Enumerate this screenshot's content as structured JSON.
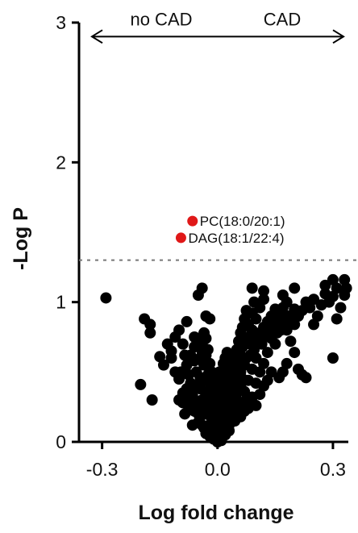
{
  "chart_data": {
    "type": "scatter",
    "xlabel": "Log fold change",
    "ylabel": "-Log P",
    "xlim": [
      -0.36,
      0.34
    ],
    "ylim": [
      0,
      3
    ],
    "xticks": [
      {
        "value": -0.3,
        "label": "-0.3"
      },
      {
        "value": 0.0,
        "label": "0.0"
      },
      {
        "value": 0.3,
        "label": "0.3"
      }
    ],
    "yticks": [
      {
        "value": 0,
        "label": "0"
      },
      {
        "value": 1,
        "label": "1"
      },
      {
        "value": 2,
        "label": "2"
      },
      {
        "value": 3,
        "label": "3"
      }
    ],
    "threshold": 1.3,
    "direction_arrow": {
      "y": 2.9,
      "left_label": "no CAD",
      "right_label": "CAD"
    },
    "colors": {
      "points": "#000000",
      "highlight": "#e01818",
      "threshold": "#777777"
    },
    "highlighted": [
      {
        "label": "PC(18:0/20:1)",
        "x": -0.065,
        "y": 1.58
      },
      {
        "label": "DAG(18:1/22:4)",
        "x": -0.095,
        "y": 1.46
      }
    ],
    "points": [
      [
        -0.29,
        1.03
      ],
      [
        -0.19,
        0.88
      ],
      [
        -0.175,
        0.84
      ],
      [
        -0.175,
        0.78
      ],
      [
        -0.2,
        0.41
      ],
      [
        -0.15,
        0.61
      ],
      [
        -0.14,
        0.55
      ],
      [
        -0.17,
        0.3
      ],
      [
        -0.12,
        0.65
      ],
      [
        -0.11,
        0.5
      ],
      [
        -0.1,
        0.45
      ],
      [
        -0.05,
        1.05
      ],
      [
        -0.04,
        1.1
      ],
      [
        -0.03,
        0.9
      ],
      [
        -0.02,
        0.88
      ],
      [
        -0.1,
        0.3
      ],
      [
        -0.09,
        0.35
      ],
      [
        -0.08,
        0.55
      ],
      [
        -0.07,
        0.62
      ],
      [
        -0.06,
        0.58
      ],
      [
        -0.07,
        0.42
      ],
      [
        -0.05,
        0.4
      ],
      [
        -0.045,
        0.38
      ],
      [
        -0.04,
        0.3
      ],
      [
        -0.035,
        0.55
      ],
      [
        -0.03,
        0.34
      ],
      [
        -0.025,
        0.25
      ],
      [
        -0.02,
        0.2
      ],
      [
        -0.015,
        0.15
      ],
      [
        -0.01,
        0.1
      ],
      [
        -0.005,
        0.06
      ],
      [
        0.0,
        0.03
      ],
      [
        0.005,
        0.08
      ],
      [
        0.01,
        0.12
      ],
      [
        0.012,
        0.18
      ],
      [
        -0.06,
        0.68
      ],
      [
        -0.06,
        0.75
      ],
      [
        -0.05,
        0.72
      ],
      [
        -0.04,
        0.65
      ],
      [
        -0.03,
        0.62
      ],
      [
        -0.025,
        0.48
      ],
      [
        -0.02,
        0.42
      ],
      [
        -0.015,
        0.38
      ],
      [
        -0.01,
        0.3
      ],
      [
        -0.01,
        0.22
      ],
      [
        -0.02,
        0.32
      ],
      [
        -0.03,
        0.2
      ],
      [
        -0.04,
        0.22
      ],
      [
        -0.055,
        0.28
      ],
      [
        -0.065,
        0.33
      ],
      [
        -0.075,
        0.25
      ],
      [
        -0.085,
        0.2
      ],
      [
        -0.09,
        0.28
      ],
      [
        -0.065,
        0.12
      ],
      [
        -0.05,
        0.14
      ],
      [
        -0.035,
        0.1
      ],
      [
        -0.025,
        0.08
      ],
      [
        -0.015,
        0.05
      ],
      [
        -0.02,
        0.12
      ],
      [
        -0.045,
        0.18
      ],
      [
        -0.055,
        0.5
      ],
      [
        -0.045,
        0.46
      ],
      [
        -0.035,
        0.44
      ],
      [
        -0.025,
        0.36
      ],
      [
        -0.03,
        0.28
      ],
      [
        -0.015,
        0.28
      ],
      [
        -0.012,
        0.34
      ],
      [
        -0.008,
        0.18
      ],
      [
        -0.005,
        0.14
      ],
      [
        0.0,
        0.1
      ],
      [
        0.015,
        0.1
      ],
      [
        0.02,
        0.14
      ],
      [
        0.025,
        0.2
      ],
      [
        0.03,
        0.25
      ],
      [
        0.035,
        0.3
      ],
      [
        0.02,
        0.28
      ],
      [
        0.025,
        0.35
      ],
      [
        0.03,
        0.4
      ],
      [
        0.04,
        0.38
      ],
      [
        0.045,
        0.45
      ],
      [
        0.04,
        0.5
      ],
      [
        0.05,
        0.52
      ],
      [
        0.055,
        0.58
      ],
      [
        0.06,
        0.62
      ],
      [
        0.06,
        0.5
      ],
      [
        0.065,
        0.68
      ],
      [
        0.07,
        0.72
      ],
      [
        0.08,
        0.75
      ],
      [
        0.085,
        0.7
      ],
      [
        0.09,
        0.8
      ],
      [
        0.075,
        0.6
      ],
      [
        0.07,
        0.55
      ],
      [
        0.065,
        0.45
      ],
      [
        0.05,
        0.42
      ],
      [
        0.045,
        0.34
      ],
      [
        0.035,
        0.18
      ],
      [
        0.03,
        0.12
      ],
      [
        0.04,
        0.22
      ],
      [
        0.05,
        0.3
      ],
      [
        0.055,
        0.36
      ],
      [
        0.06,
        0.4
      ],
      [
        0.07,
        0.36
      ],
      [
        0.08,
        0.44
      ],
      [
        0.09,
        0.52
      ],
      [
        0.1,
        0.6
      ],
      [
        0.1,
        0.7
      ],
      [
        0.11,
        0.78
      ],
      [
        0.12,
        0.82
      ],
      [
        0.13,
        0.86
      ],
      [
        0.14,
        0.9
      ],
      [
        0.1,
        0.88
      ],
      [
        0.09,
        0.92
      ],
      [
        0.095,
        1.0
      ],
      [
        0.11,
        0.96
      ],
      [
        0.12,
        1.02
      ],
      [
        0.09,
        1.1
      ],
      [
        0.12,
        1.08
      ],
      [
        0.15,
        0.95
      ],
      [
        0.16,
        0.92
      ],
      [
        0.17,
        0.96
      ],
      [
        0.18,
        1.0
      ],
      [
        0.17,
        1.05
      ],
      [
        0.16,
        0.85
      ],
      [
        0.18,
        0.8
      ],
      [
        0.2,
        0.84
      ],
      [
        0.21,
        0.9
      ],
      [
        0.22,
        0.94
      ],
      [
        0.19,
        0.72
      ],
      [
        0.15,
        0.7
      ],
      [
        0.13,
        0.64
      ],
      [
        0.12,
        0.56
      ],
      [
        0.11,
        0.5
      ],
      [
        0.1,
        0.42
      ],
      [
        0.08,
        0.3
      ],
      [
        0.07,
        0.22
      ],
      [
        0.06,
        0.18
      ],
      [
        0.045,
        0.15
      ],
      [
        0.03,
        0.08
      ],
      [
        0.02,
        0.05
      ],
      [
        0.01,
        0.03
      ],
      [
        0.0,
        0.18
      ],
      [
        0.005,
        0.24
      ],
      [
        0.01,
        0.28
      ],
      [
        0.008,
        0.34
      ],
      [
        0.015,
        0.4
      ],
      [
        -0.008,
        0.4
      ],
      [
        0.0,
        0.45
      ],
      [
        0.005,
        0.4
      ],
      [
        0.02,
        0.46
      ],
      [
        0.025,
        0.52
      ],
      [
        0.035,
        0.56
      ],
      [
        0.04,
        0.62
      ],
      [
        0.05,
        0.66
      ],
      [
        0.055,
        0.72
      ],
      [
        0.06,
        0.78
      ],
      [
        0.065,
        0.82
      ],
      [
        0.07,
        0.88
      ],
      [
        0.075,
        0.94
      ],
      [
        0.08,
        0.84
      ],
      [
        0.085,
        0.62
      ],
      [
        0.095,
        0.66
      ],
      [
        0.105,
        0.74
      ],
      [
        0.115,
        0.7
      ],
      [
        0.125,
        0.76
      ],
      [
        0.135,
        0.8
      ],
      [
        0.14,
        0.74
      ],
      [
        0.145,
        0.84
      ],
      [
        0.155,
        0.78
      ],
      [
        0.165,
        0.8
      ],
      [
        0.175,
        0.86
      ],
      [
        0.185,
        0.9
      ],
      [
        0.2,
        0.95
      ],
      [
        0.23,
        1.0
      ],
      [
        0.25,
        1.02
      ],
      [
        0.24,
        0.96
      ],
      [
        0.27,
        0.98
      ],
      [
        0.28,
        1.06
      ],
      [
        0.29,
        1.0
      ],
      [
        0.3,
        1.04
      ],
      [
        0.31,
        1.1
      ],
      [
        0.32,
        0.96
      ],
      [
        0.33,
        1.05
      ],
      [
        0.31,
        0.88
      ],
      [
        0.26,
        0.9
      ],
      [
        0.25,
        0.84
      ],
      [
        0.2,
        0.64
      ],
      [
        0.18,
        0.56
      ],
      [
        0.21,
        0.52
      ],
      [
        0.22,
        0.48
      ],
      [
        0.23,
        0.46
      ],
      [
        0.3,
        0.6
      ],
      [
        0.28,
        1.12
      ],
      [
        0.3,
        1.16
      ],
      [
        0.33,
        1.16
      ],
      [
        0.335,
        1.1
      ],
      [
        0.17,
        0.5
      ],
      [
        0.16,
        0.46
      ],
      [
        0.14,
        0.5
      ],
      [
        0.13,
        0.44
      ],
      [
        0.12,
        0.4
      ],
      [
        0.11,
        0.34
      ],
      [
        0.09,
        0.32
      ],
      [
        0.08,
        0.24
      ],
      [
        0.1,
        0.26
      ],
      [
        0.2,
        1.1
      ],
      [
        -0.13,
        0.7
      ],
      [
        -0.11,
        0.75
      ],
      [
        -0.1,
        0.8
      ],
      [
        -0.09,
        0.7
      ],
      [
        -0.08,
        0.86
      ],
      [
        -0.12,
        0.6
      ],
      [
        -0.085,
        0.62
      ],
      [
        -0.095,
        0.5
      ],
      [
        -0.075,
        0.48
      ],
      [
        -0.06,
        0.4
      ],
      [
        -0.08,
        0.38
      ],
      [
        -0.07,
        0.3
      ],
      [
        -0.06,
        0.22
      ],
      [
        -0.05,
        0.2
      ],
      [
        -0.04,
        0.12
      ],
      [
        -0.03,
        0.06
      ],
      [
        -0.02,
        0.04
      ],
      [
        -0.01,
        0.02
      ],
      [
        0.0,
        0.0
      ],
      [
        0.01,
        0.01
      ],
      [
        0.02,
        0.08
      ],
      [
        0.015,
        0.22
      ],
      [
        0.025,
        0.3
      ],
      [
        0.03,
        0.34
      ],
      [
        0.035,
        0.42
      ],
      [
        0.04,
        0.3
      ],
      [
        0.05,
        0.24
      ],
      [
        0.055,
        0.2
      ],
      [
        0.065,
        0.26
      ],
      [
        0.075,
        0.3
      ],
      [
        -0.045,
        0.6
      ],
      [
        -0.04,
        0.7
      ],
      [
        -0.035,
        0.78
      ],
      [
        -0.03,
        0.74
      ],
      [
        -0.025,
        0.66
      ],
      [
        -0.02,
        0.56
      ],
      [
        -0.015,
        0.5
      ],
      [
        -0.01,
        0.44
      ],
      [
        -0.005,
        0.34
      ],
      [
        0.0,
        0.28
      ],
      [
        0.005,
        0.5
      ],
      [
        0.01,
        0.48
      ],
      [
        0.015,
        0.56
      ],
      [
        0.02,
        0.6
      ],
      [
        0.025,
        0.64
      ]
    ]
  }
}
